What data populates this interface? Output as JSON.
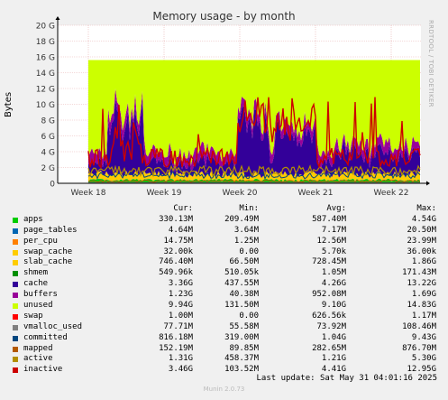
{
  "chart_data": {
    "type": "area",
    "title": "Memory usage - by month",
    "ylabel": "Bytes",
    "side_label": "RRDTOOL / TOBI OETIKER",
    "ylim": [
      0,
      20
    ],
    "y_unit": "G",
    "y_ticks": [
      "0",
      "2 G",
      "4 G",
      "6 G",
      "8 G",
      "10 G",
      "12 G",
      "14 G",
      "16 G",
      "18 G",
      "20 G"
    ],
    "x_ticks": [
      "Week 18",
      "Week 19",
      "Week 20",
      "Week 21",
      "Week 22"
    ],
    "total_ram_g": 15.6,
    "approx_stack_g": {
      "apps": 0.33,
      "page_tables": 0.005,
      "per_cpu": 0.015,
      "slab_cache": 0.73,
      "shmem": 0.001,
      "cache": 3.3,
      "buffers": 1.2,
      "swap": 0.001,
      "vmalloc_used": 0.08,
      "committed": 0.8,
      "mapped": 0.15,
      "active": 1.3,
      "inactive": 3.4
    }
  },
  "legend": {
    "headers": {
      "cur": "Cur:",
      "min": "Min:",
      "avg": "Avg:",
      "max": "Max:"
    },
    "rows": [
      {
        "name": "apps",
        "color": "#00cc00",
        "cur": "330.13M",
        "min": "209.49M",
        "avg": "587.40M",
        "max": "4.54G"
      },
      {
        "name": "page_tables",
        "color": "#0066b3",
        "cur": "4.64M",
        "min": "3.64M",
        "avg": "7.17M",
        "max": "20.50M"
      },
      {
        "name": "per_cpu",
        "color": "#ff8000",
        "cur": "14.75M",
        "min": "1.25M",
        "avg": "12.56M",
        "max": "23.99M"
      },
      {
        "name": "swap_cache",
        "color": "#ffcc00",
        "cur": "32.00k",
        "min": "0.00",
        "avg": "5.70k",
        "max": "36.00k"
      },
      {
        "name": "slab_cache",
        "color": "#ffcc00",
        "cur": "746.40M",
        "min": "66.50M",
        "avg": "728.45M",
        "max": "1.86G"
      },
      {
        "name": "shmem",
        "color": "#008f00",
        "cur": "549.96k",
        "min": "510.05k",
        "avg": "1.05M",
        "max": "171.43M"
      },
      {
        "name": "cache",
        "color": "#330099",
        "cur": "3.36G",
        "min": "437.55M",
        "avg": "4.26G",
        "max": "13.22G"
      },
      {
        "name": "buffers",
        "color": "#990099",
        "cur": "1.23G",
        "min": "40.38M",
        "avg": "952.08M",
        "max": "1.69G"
      },
      {
        "name": "unused",
        "color": "#ccff00",
        "cur": "9.94G",
        "min": "131.50M",
        "avg": "9.10G",
        "max": "14.83G"
      },
      {
        "name": "swap",
        "color": "#ff0000",
        "cur": "1.00M",
        "min": "0.00",
        "avg": "626.56k",
        "max": "1.17M"
      },
      {
        "name": "vmalloc_used",
        "color": "#808080",
        "cur": "77.71M",
        "min": "55.58M",
        "avg": "73.92M",
        "max": "108.46M"
      },
      {
        "name": "committed",
        "color": "#00467f",
        "cur": "816.18M",
        "min": "319.00M",
        "avg": "1.04G",
        "max": "9.43G"
      },
      {
        "name": "mapped",
        "color": "#b35900",
        "cur": "152.19M",
        "min": "89.85M",
        "avg": "282.65M",
        "max": "876.70M"
      },
      {
        "name": "active",
        "color": "#b38f00",
        "cur": "1.31G",
        "min": "458.37M",
        "avg": "1.21G",
        "max": "5.30G"
      },
      {
        "name": "inactive",
        "color": "#cc0000",
        "cur": "3.46G",
        "min": "103.52M",
        "avg": "4.41G",
        "max": "12.95G"
      }
    ]
  },
  "footer": {
    "last_update": "Last update: Sat May 31 04:01:16 2025",
    "version": "Munin 2.0.73"
  }
}
